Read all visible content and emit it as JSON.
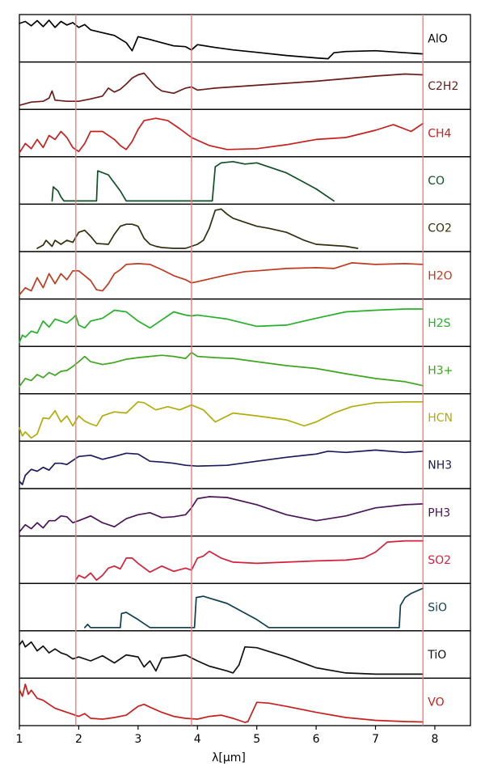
{
  "chart_data": {
    "type": "line",
    "xlabel": "λ[μm]",
    "xlim": [
      1,
      8.6
    ],
    "xticks": [
      "1",
      "2",
      "3",
      "4",
      "5",
      "6",
      "7",
      "8"
    ],
    "xtick_values": [
      1,
      2,
      3,
      4,
      5,
      6,
      7,
      8
    ],
    "y_normalized": [
      0,
      1
    ],
    "grid": false,
    "vertical_lines": [
      {
        "x": 1.95,
        "color": "#e87a7a"
      },
      {
        "x": 3.9,
        "color": "#e87a7a"
      },
      {
        "x": 7.8,
        "color": "#e87a7a"
      }
    ],
    "series": [
      {
        "name": "AlO",
        "color": "#000000",
        "x": [
          1.0,
          1.1,
          1.2,
          1.3,
          1.4,
          1.5,
          1.6,
          1.7,
          1.8,
          1.9,
          2.0,
          2.1,
          2.2,
          2.4,
          2.6,
          2.8,
          2.9,
          3.0,
          3.2,
          3.4,
          3.6,
          3.8,
          3.9,
          4.0,
          4.3,
          4.6,
          5.0,
          5.5,
          6.0,
          6.2,
          6.3,
          6.5,
          7.0,
          7.5,
          7.8
        ],
        "y": [
          0.88,
          0.93,
          0.82,
          0.95,
          0.8,
          0.96,
          0.78,
          0.93,
          0.84,
          0.9,
          0.78,
          0.85,
          0.72,
          0.65,
          0.58,
          0.4,
          0.2,
          0.55,
          0.48,
          0.4,
          0.32,
          0.3,
          0.22,
          0.35,
          0.28,
          0.22,
          0.16,
          0.08,
          0.02,
          0.0,
          0.15,
          0.18,
          0.2,
          0.15,
          0.12
        ]
      },
      {
        "name": "C2H2",
        "color": "#6b1a1a",
        "x": [
          1.0,
          1.2,
          1.4,
          1.5,
          1.55,
          1.6,
          1.8,
          2.0,
          2.2,
          2.4,
          2.5,
          2.6,
          2.7,
          2.8,
          2.9,
          3.0,
          3.1,
          3.2,
          3.3,
          3.4,
          3.6,
          3.8,
          3.9,
          4.0,
          4.3,
          5.0,
          6.0,
          7.0,
          7.5,
          7.8
        ],
        "y": [
          0.02,
          0.1,
          0.12,
          0.2,
          0.38,
          0.15,
          0.12,
          0.12,
          0.18,
          0.25,
          0.45,
          0.35,
          0.42,
          0.55,
          0.7,
          0.78,
          0.82,
          0.65,
          0.48,
          0.38,
          0.32,
          0.45,
          0.48,
          0.4,
          0.45,
          0.52,
          0.62,
          0.75,
          0.8,
          0.78
        ]
      },
      {
        "name": "CH4",
        "color": "#c81e1e",
        "x": [
          1.0,
          1.1,
          1.2,
          1.3,
          1.4,
          1.5,
          1.6,
          1.7,
          1.8,
          1.9,
          2.0,
          2.1,
          2.2,
          2.4,
          2.6,
          2.7,
          2.8,
          2.9,
          3.0,
          3.1,
          3.3,
          3.5,
          3.7,
          3.9,
          4.2,
          4.5,
          5.0,
          5.5,
          6.0,
          6.5,
          7.0,
          7.3,
          7.6,
          7.8
        ],
        "y": [
          0.02,
          0.25,
          0.12,
          0.35,
          0.15,
          0.45,
          0.35,
          0.55,
          0.4,
          0.15,
          0.05,
          0.25,
          0.55,
          0.55,
          0.35,
          0.2,
          0.1,
          0.3,
          0.6,
          0.82,
          0.88,
          0.82,
          0.62,
          0.4,
          0.2,
          0.1,
          0.12,
          0.22,
          0.35,
          0.4,
          0.58,
          0.72,
          0.55,
          0.75
        ]
      },
      {
        "name": "CO",
        "color": "#0f4f25",
        "x": [
          1.55,
          1.57,
          1.65,
          1.7,
          1.75,
          2.3,
          2.32,
          2.5,
          2.7,
          2.8,
          4.25,
          4.3,
          4.4,
          4.6,
          4.8,
          5.0,
          5.5,
          6.0,
          6.3
        ],
        "y": [
          0.0,
          0.35,
          0.25,
          0.1,
          0.0,
          0.0,
          0.75,
          0.65,
          0.25,
          0.0,
          0.0,
          0.85,
          0.95,
          0.98,
          0.92,
          0.95,
          0.7,
          0.3,
          0.0
        ]
      },
      {
        "name": "CO2",
        "color": "#2f2f0f",
        "x": [
          1.3,
          1.4,
          1.45,
          1.55,
          1.6,
          1.7,
          1.8,
          1.9,
          2.0,
          2.1,
          2.2,
          2.3,
          2.5,
          2.6,
          2.7,
          2.8,
          2.9,
          3.0,
          3.1,
          3.2,
          3.3,
          3.4,
          3.6,
          3.8,
          3.9,
          4.0,
          4.1,
          4.2,
          4.3,
          4.4,
          4.5,
          4.6,
          4.8,
          5.0,
          5.2,
          5.5,
          5.8,
          6.0,
          6.5,
          6.7
        ],
        "y": [
          0.0,
          0.08,
          0.2,
          0.05,
          0.2,
          0.1,
          0.2,
          0.15,
          0.4,
          0.45,
          0.3,
          0.12,
          0.1,
          0.35,
          0.55,
          0.6,
          0.6,
          0.55,
          0.25,
          0.1,
          0.05,
          0.02,
          0.0,
          0.0,
          0.05,
          0.1,
          0.2,
          0.5,
          0.95,
          0.98,
          0.85,
          0.75,
          0.65,
          0.55,
          0.5,
          0.4,
          0.2,
          0.1,
          0.05,
          0.0
        ]
      },
      {
        "name": "H2O",
        "color": "#c0391e",
        "x": [
          1.0,
          1.1,
          1.2,
          1.3,
          1.4,
          1.5,
          1.6,
          1.7,
          1.8,
          1.9,
          2.0,
          2.1,
          2.2,
          2.3,
          2.4,
          2.5,
          2.6,
          2.7,
          2.8,
          3.0,
          3.2,
          3.4,
          3.6,
          3.8,
          3.9,
          4.0,
          4.2,
          4.5,
          4.8,
          5.0,
          5.5,
          6.0,
          6.3,
          6.6,
          7.0,
          7.5,
          7.8
        ],
        "y": [
          0.02,
          0.2,
          0.12,
          0.45,
          0.2,
          0.55,
          0.3,
          0.55,
          0.4,
          0.62,
          0.62,
          0.5,
          0.38,
          0.15,
          0.12,
          0.3,
          0.55,
          0.65,
          0.78,
          0.8,
          0.78,
          0.65,
          0.5,
          0.4,
          0.32,
          0.35,
          0.42,
          0.52,
          0.6,
          0.62,
          0.68,
          0.7,
          0.68,
          0.82,
          0.78,
          0.8,
          0.78
        ]
      },
      {
        "name": "H2S",
        "color": "#27b02a",
        "x": [
          1.0,
          1.05,
          1.1,
          1.2,
          1.3,
          1.4,
          1.5,
          1.6,
          1.7,
          1.8,
          1.9,
          1.95,
          2.0,
          2.1,
          2.2,
          2.4,
          2.6,
          2.8,
          3.0,
          3.2,
          3.4,
          3.6,
          3.8,
          3.9,
          4.0,
          4.5,
          5.0,
          5.5,
          6.0,
          6.5,
          7.0,
          7.5,
          7.8
        ],
        "y": [
          0.02,
          0.2,
          0.15,
          0.3,
          0.25,
          0.55,
          0.4,
          0.6,
          0.55,
          0.5,
          0.62,
          0.7,
          0.45,
          0.38,
          0.55,
          0.62,
          0.82,
          0.78,
          0.55,
          0.38,
          0.58,
          0.78,
          0.7,
          0.68,
          0.7,
          0.6,
          0.42,
          0.45,
          0.62,
          0.78,
          0.82,
          0.85,
          0.85
        ]
      },
      {
        "name": "H3+",
        "color": "#3ea61e",
        "x": [
          1.0,
          1.1,
          1.2,
          1.3,
          1.4,
          1.5,
          1.6,
          1.7,
          1.8,
          1.9,
          2.0,
          2.1,
          2.2,
          2.4,
          2.6,
          2.8,
          3.0,
          3.2,
          3.4,
          3.6,
          3.8,
          3.9,
          4.0,
          4.3,
          4.6,
          5.0,
          5.5,
          6.0,
          6.5,
          7.0,
          7.5,
          7.8
        ],
        "y": [
          0.1,
          0.3,
          0.25,
          0.4,
          0.32,
          0.45,
          0.38,
          0.48,
          0.5,
          0.6,
          0.72,
          0.85,
          0.72,
          0.65,
          0.7,
          0.78,
          0.82,
          0.85,
          0.88,
          0.85,
          0.8,
          0.95,
          0.85,
          0.82,
          0.8,
          0.72,
          0.62,
          0.55,
          0.42,
          0.3,
          0.22,
          0.12
        ]
      },
      {
        "name": "HCN",
        "color": "#b0ad0a",
        "x": [
          1.0,
          1.05,
          1.1,
          1.2,
          1.3,
          1.4,
          1.5,
          1.6,
          1.7,
          1.8,
          1.9,
          2.0,
          2.1,
          2.2,
          2.3,
          2.4,
          2.5,
          2.6,
          2.8,
          3.0,
          3.1,
          3.3,
          3.5,
          3.7,
          3.9,
          4.1,
          4.3,
          4.6,
          5.0,
          5.5,
          5.8,
          6.0,
          6.3,
          6.6,
          7.0,
          7.5,
          7.8
        ],
        "y": [
          0.25,
          0.05,
          0.15,
          0.0,
          0.1,
          0.5,
          0.48,
          0.68,
          0.4,
          0.55,
          0.3,
          0.55,
          0.42,
          0.35,
          0.3,
          0.55,
          0.6,
          0.65,
          0.62,
          0.9,
          0.88,
          0.7,
          0.78,
          0.7,
          0.82,
          0.7,
          0.4,
          0.62,
          0.55,
          0.45,
          0.3,
          0.4,
          0.62,
          0.78,
          0.88,
          0.9,
          0.9
        ]
      },
      {
        "name": "NH3",
        "color": "#1a1a5c",
        "x": [
          1.0,
          1.05,
          1.1,
          1.2,
          1.3,
          1.4,
          1.5,
          1.6,
          1.7,
          1.8,
          1.9,
          2.0,
          2.2,
          2.4,
          2.6,
          2.8,
          3.0,
          3.2,
          3.4,
          3.6,
          3.8,
          4.0,
          4.5,
          5.0,
          5.5,
          6.0,
          6.2,
          6.5,
          7.0,
          7.5,
          7.8
        ],
        "y": [
          0.1,
          0.02,
          0.25,
          0.4,
          0.35,
          0.45,
          0.38,
          0.55,
          0.55,
          0.52,
          0.62,
          0.72,
          0.75,
          0.65,
          0.72,
          0.8,
          0.78,
          0.6,
          0.58,
          0.55,
          0.5,
          0.48,
          0.5,
          0.6,
          0.7,
          0.78,
          0.85,
          0.82,
          0.88,
          0.82,
          0.85
        ]
      },
      {
        "name": "PH3",
        "color": "#4a1458",
        "x": [
          1.0,
          1.1,
          1.2,
          1.3,
          1.4,
          1.5,
          1.6,
          1.7,
          1.8,
          1.9,
          2.0,
          2.2,
          2.4,
          2.6,
          2.8,
          3.0,
          3.2,
          3.4,
          3.6,
          3.8,
          3.9,
          4.0,
          4.2,
          4.5,
          5.0,
          5.5,
          6.0,
          6.5,
          7.0,
          7.5,
          7.8
        ],
        "y": [
          0.02,
          0.2,
          0.1,
          0.25,
          0.12,
          0.3,
          0.3,
          0.42,
          0.4,
          0.25,
          0.3,
          0.42,
          0.25,
          0.15,
          0.35,
          0.45,
          0.5,
          0.38,
          0.4,
          0.45,
          0.62,
          0.85,
          0.9,
          0.88,
          0.7,
          0.45,
          0.3,
          0.42,
          0.62,
          0.7,
          0.72
        ]
      },
      {
        "name": "SO2",
        "color": "#d61f3a",
        "x": [
          1.95,
          2.0,
          2.1,
          2.2,
          2.3,
          2.4,
          2.5,
          2.6,
          2.7,
          2.8,
          2.9,
          3.0,
          3.2,
          3.4,
          3.6,
          3.8,
          3.9,
          4.0,
          4.1,
          4.2,
          4.4,
          4.6,
          5.0,
          5.5,
          6.0,
          6.5,
          6.8,
          7.0,
          7.2,
          7.5,
          7.8
        ],
        "y": [
          0.0,
          0.12,
          0.05,
          0.18,
          0.0,
          0.12,
          0.3,
          0.35,
          0.28,
          0.55,
          0.55,
          0.42,
          0.2,
          0.35,
          0.22,
          0.3,
          0.25,
          0.55,
          0.6,
          0.72,
          0.55,
          0.45,
          0.42,
          0.45,
          0.48,
          0.5,
          0.55,
          0.7,
          0.95,
          0.98,
          0.98
        ]
      },
      {
        "name": "SiO",
        "color": "#0f3f4f",
        "x": [
          2.1,
          2.15,
          2.2,
          2.7,
          2.72,
          2.8,
          3.0,
          3.2,
          3.95,
          3.98,
          4.1,
          4.5,
          5.0,
          5.2,
          7.4,
          7.42,
          7.5,
          7.6,
          7.8
        ],
        "y": [
          0.0,
          0.08,
          0.0,
          0.0,
          0.35,
          0.38,
          0.2,
          0.0,
          0.0,
          0.75,
          0.78,
          0.6,
          0.2,
          0.0,
          0.0,
          0.55,
          0.75,
          0.85,
          0.98
        ]
      },
      {
        "name": "TiO",
        "color": "#111111",
        "x": [
          1.0,
          1.05,
          1.1,
          1.2,
          1.3,
          1.4,
          1.5,
          1.6,
          1.7,
          1.8,
          1.9,
          2.0,
          2.2,
          2.4,
          2.6,
          2.8,
          3.0,
          3.1,
          3.2,
          3.3,
          3.4,
          3.6,
          3.8,
          4.0,
          4.2,
          4.5,
          4.6,
          4.7,
          4.8,
          5.0,
          5.5,
          6.0,
          6.5,
          7.0,
          7.5,
          7.8
        ],
        "y": [
          0.75,
          0.85,
          0.7,
          0.82,
          0.6,
          0.72,
          0.55,
          0.65,
          0.55,
          0.5,
          0.4,
          0.45,
          0.35,
          0.48,
          0.3,
          0.5,
          0.45,
          0.2,
          0.35,
          0.1,
          0.42,
          0.45,
          0.5,
          0.35,
          0.22,
          0.1,
          0.05,
          0.25,
          0.7,
          0.68,
          0.45,
          0.18,
          0.05,
          0.02,
          0.02,
          0.02
        ]
      },
      {
        "name": "VO",
        "color": "#c81e1e",
        "x": [
          1.0,
          1.05,
          1.1,
          1.15,
          1.2,
          1.3,
          1.4,
          1.5,
          1.6,
          1.7,
          1.8,
          1.9,
          2.0,
          2.1,
          2.2,
          2.4,
          2.6,
          2.8,
          3.0,
          3.1,
          3.2,
          3.4,
          3.6,
          3.8,
          4.0,
          4.2,
          4.4,
          4.6,
          4.8,
          4.85,
          5.0,
          5.2,
          5.5,
          6.0,
          6.5,
          7.0,
          7.5,
          7.8
        ],
        "y": [
          0.82,
          0.65,
          0.95,
          0.7,
          0.8,
          0.6,
          0.55,
          0.45,
          0.35,
          0.3,
          0.25,
          0.2,
          0.15,
          0.22,
          0.1,
          0.08,
          0.12,
          0.18,
          0.4,
          0.45,
          0.38,
          0.25,
          0.15,
          0.1,
          0.08,
          0.15,
          0.18,
          0.1,
          0.0,
          0.02,
          0.5,
          0.48,
          0.4,
          0.25,
          0.12,
          0.05,
          0.02,
          0.01
        ]
      }
    ]
  }
}
